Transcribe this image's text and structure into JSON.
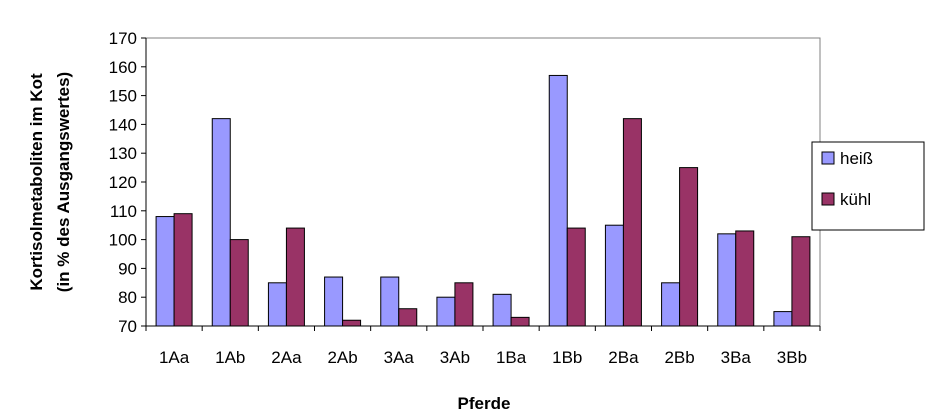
{
  "chart_data": {
    "type": "bar",
    "title": "",
    "xlabel": "Pferde",
    "ylabel_lines": [
      "Kortisolmetaboliten im Kot",
      "(in % des Ausgangswertes)"
    ],
    "ylim": [
      70,
      170
    ],
    "ytick_step": 10,
    "grid": false,
    "legend_position": "right",
    "categories": [
      "1Aa",
      "1Ab",
      "2Aa",
      "2Ab",
      "3Aa",
      "3Ab",
      "1Ba",
      "1Bb",
      "2Ba",
      "2Bb",
      "3Ba",
      "3Bb"
    ],
    "series": [
      {
        "name": "heiß",
        "color": "#9999ff",
        "values": [
          108,
          142,
          85,
          87,
          87,
          80,
          81,
          157,
          105,
          85,
          102,
          75
        ]
      },
      {
        "name": "kühl",
        "color": "#993366",
        "values": [
          109,
          100,
          104,
          72,
          76,
          85,
          73,
          104,
          142,
          125,
          103,
          101
        ]
      }
    ]
  }
}
